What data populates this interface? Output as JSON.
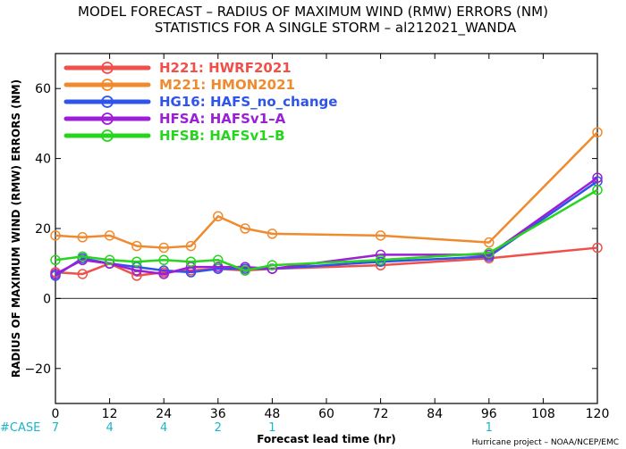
{
  "chart_data": {
    "type": "line",
    "title": "MODEL FORECAST – RADIUS OF MAXIMUM WIND (RMW) ERRORS (NM)",
    "subtitle": "STATISTICS FOR A SINGLE STORM – al212021_WANDA",
    "xlabel": "Forecast lead time (hr)",
    "ylabel": "RADIUS OF MAXIMUM WIND (RMW) ERRORS (NM)",
    "xlim": [
      0,
      120
    ],
    "ylim": [
      -30,
      70
    ],
    "xticks": [
      0,
      12,
      24,
      36,
      48,
      60,
      72,
      84,
      96,
      108,
      120
    ],
    "yticks": [
      -20,
      0,
      20,
      40,
      60
    ],
    "ytick_labels": [
      "−20",
      "0",
      "20",
      "40",
      "60"
    ],
    "zero_line": true,
    "grid": false,
    "legend_position": "top-left",
    "series": [
      {
        "name": "H221:  HWRF2021",
        "color": "#f0504a",
        "x": [
          0,
          6,
          12,
          18,
          24,
          30,
          36,
          42,
          48,
          72,
          96,
          120
        ],
        "y": [
          7.5,
          7,
          10,
          6.5,
          7.5,
          8,
          8.5,
          8,
          8.5,
          9.5,
          11.5,
          14.5
        ]
      },
      {
        "name": "M221:  HMON2021",
        "color": "#f08a2e",
        "x": [
          0,
          6,
          12,
          18,
          24,
          30,
          36,
          42,
          48,
          72,
          96,
          120
        ],
        "y": [
          18,
          17.5,
          18,
          15,
          14.5,
          15,
          23.5,
          20,
          18.5,
          18,
          16,
          47.5
        ]
      },
      {
        "name": "HG16:  HAFS_no_change",
        "color": "#2f54eb",
        "x": [
          0,
          6,
          12,
          18,
          24,
          30,
          36,
          42,
          48,
          72,
          96,
          120
        ],
        "y": [
          6.5,
          11.5,
          10,
          9,
          8,
          7.5,
          8.5,
          8.5,
          8.5,
          10.5,
          12,
          33.5
        ]
      },
      {
        "name": "HFSA:  HAFSv1–A",
        "color": "#9b1fd6",
        "x": [
          0,
          6,
          12,
          18,
          24,
          30,
          36,
          42,
          48,
          72,
          96,
          120
        ],
        "y": [
          7,
          11,
          10,
          8,
          7,
          9,
          9,
          9,
          8.5,
          12.5,
          12.5,
          34.5
        ]
      },
      {
        "name": "HFSB:  HAFSv1–B",
        "color": "#27d41e",
        "x": [
          0,
          6,
          12,
          18,
          24,
          30,
          36,
          42,
          48,
          72,
          96,
          120
        ],
        "y": [
          11,
          12,
          11,
          10.5,
          11,
          10.5,
          11,
          8,
          9.5,
          11,
          13,
          31
        ]
      }
    ],
    "cases": {
      "label": "#CASE",
      "items": [
        {
          "x": 0,
          "count": "7"
        },
        {
          "x": 12,
          "count": "4"
        },
        {
          "x": 24,
          "count": "4"
        },
        {
          "x": 36,
          "count": "2"
        },
        {
          "x": 48,
          "count": "1"
        },
        {
          "x": 96,
          "count": "1"
        }
      ]
    },
    "credit": "Hurricane project – NOAA/NCEP/EMC"
  }
}
